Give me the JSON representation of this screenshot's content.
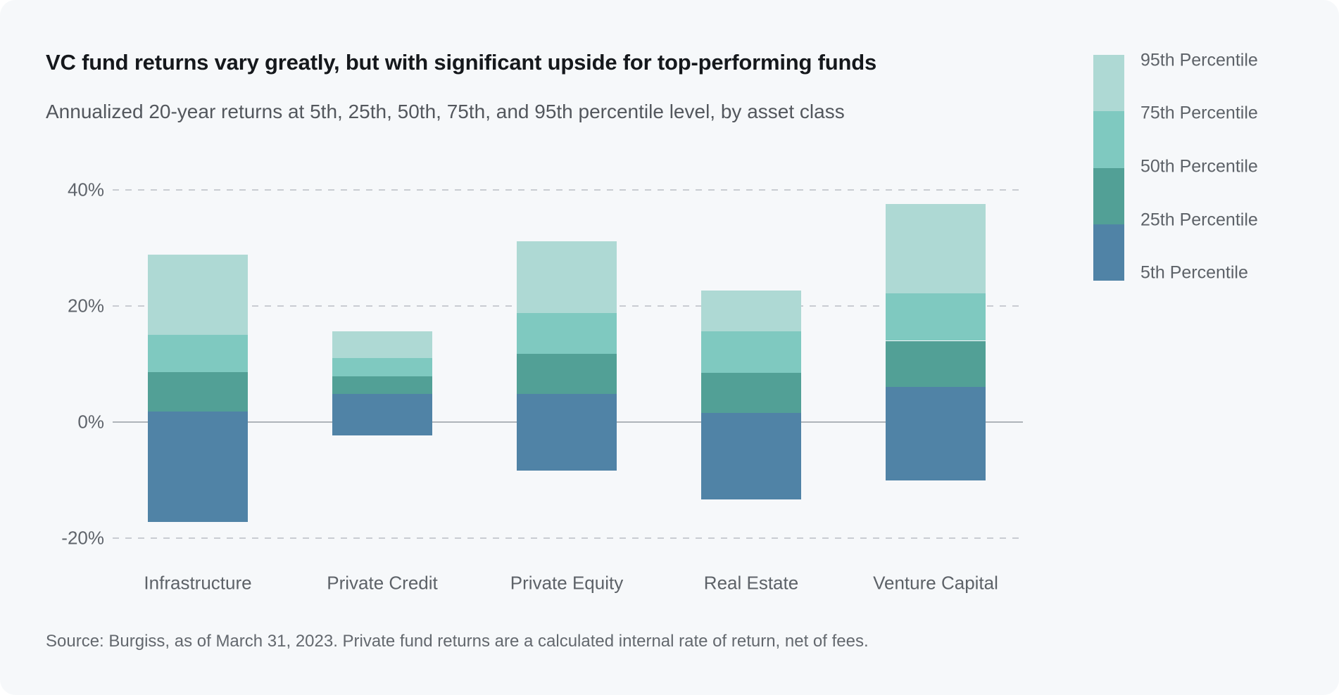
{
  "card": {
    "title": "VC fund returns vary greatly, but with significant upside for top-performing funds",
    "subtitle": "Annualized 20-year returns at 5th, 25th, 50th, 75th, and 95th percentile level, by asset class",
    "source": "Source: Burgiss, as of March 31, 2023. Private fund returns are a calculated internal rate of return, net of fees."
  },
  "legend": {
    "labels": [
      "95th Percentile",
      "75th Percentile",
      "50th Percentile",
      "25th Percentile",
      "5th Percentile"
    ],
    "segment_colors_top_to_bottom": [
      "#aed9d4",
      "#7fc9c0",
      "#52a096",
      "#5083a6"
    ]
  },
  "chart_data": {
    "type": "bar",
    "subtype": "floating-percentile-range-columns",
    "title": "VC fund returns vary greatly, but with significant upside for top-performing funds",
    "subtitle": "Annualized 20-year returns at 5th, 25th, 50th, 75th, and 95th percentile level, by asset class",
    "source": "Source: Burgiss, as of March 31, 2023. Private fund returns are a calculated internal rate of return, net of fees.",
    "categories": [
      "Infrastructure",
      "Private Credit",
      "Private Equity",
      "Real Estate",
      "Venture Capital"
    ],
    "series": [
      {
        "name": "5th Percentile",
        "values": [
          -17.2,
          -2.3,
          -8.4,
          -13.3,
          -10.1
        ]
      },
      {
        "name": "25th Percentile",
        "values": [
          1.8,
          4.9,
          4.9,
          1.6,
          6.1
        ]
      },
      {
        "name": "50th Percentile",
        "values": [
          8.6,
          7.9,
          11.7,
          8.5,
          14.0
        ]
      },
      {
        "name": "75th Percentile",
        "values": [
          15.0,
          11.0,
          18.8,
          15.6,
          22.2
        ]
      },
      {
        "name": "95th Percentile",
        "values": [
          28.8,
          15.6,
          31.2,
          22.7,
          37.6
        ]
      }
    ],
    "segments": [
      {
        "from": "5th Percentile",
        "to": "25th Percentile",
        "color": "#5083a6"
      },
      {
        "from": "25th Percentile",
        "to": "50th Percentile",
        "color": "#52a096"
      },
      {
        "from": "50th Percentile",
        "to": "75th Percentile",
        "color": "#7fc9c0"
      },
      {
        "from": "75th Percentile",
        "to": "95th Percentile",
        "color": "#aed9d4"
      }
    ],
    "y_axis": {
      "ticks": [
        40,
        20,
        0,
        -20
      ],
      "tick_suffix": "%",
      "range": [
        -24,
        46
      ],
      "gridlines": "dashed",
      "zero_line": "solid"
    },
    "legend_position": "top-right",
    "colors": {
      "background": "#f6f8fa",
      "grid_dashed": "#c9ccd2",
      "zero_line": "#aeb3b9",
      "title_text": "#15181c",
      "muted_text": "#5d6268"
    }
  }
}
